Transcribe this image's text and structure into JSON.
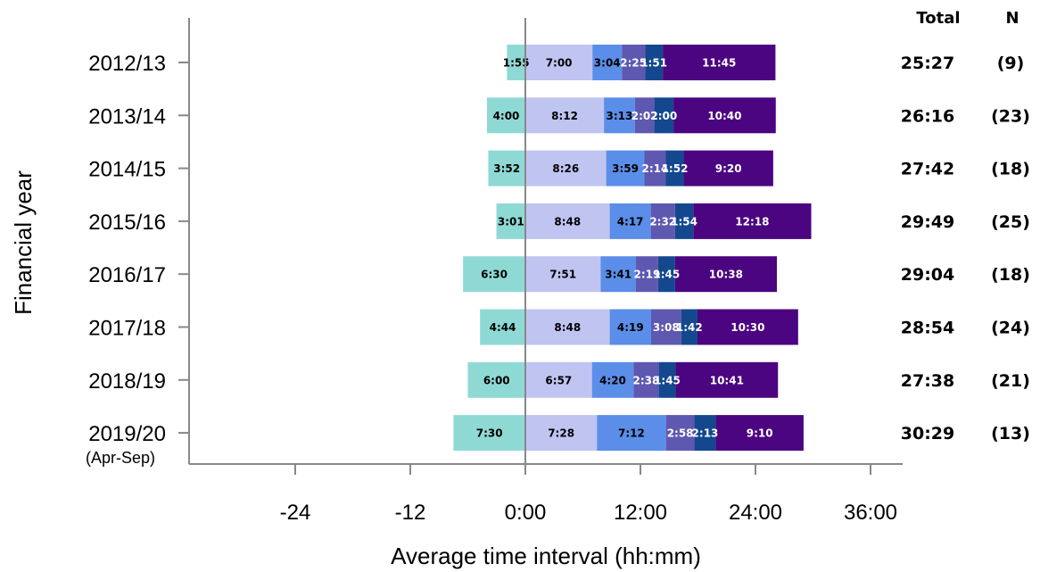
{
  "chart_data": {
    "type": "bar",
    "orientation": "horizontal",
    "stacked": true,
    "title": "",
    "xlabel": "Average time interval (hh:mm)",
    "ylabel": "Financial year",
    "xlim": [
      -35,
      37
    ],
    "x_ticks": [
      "-24",
      "-12",
      "0:00",
      "12:00",
      "24:00",
      "36:00"
    ],
    "categories": [
      "2012/13",
      "2013/14",
      "2014/15",
      "2015/16",
      "2016/17",
      "2017/18",
      "2018/19",
      "2019/20"
    ],
    "category_sublabels": [
      "",
      "",
      "",
      "",
      "",
      "",
      "",
      "(Apr-Sep)"
    ],
    "segment_colors": [
      "#8fd9d5",
      "#bfc4f1",
      "#5b8ee8",
      "#5f58b0",
      "#13488e",
      "#4b0580"
    ],
    "segment_label_colors": [
      "#000000",
      "#000000",
      "#000000",
      "#ffffff",
      "#ffffff",
      "#ffffff"
    ],
    "rows": [
      {
        "labels": [
          "1:55",
          "7:00",
          "3:04",
          "2:25",
          "1:51",
          "11:45"
        ],
        "hours": [
          1.917,
          7.0,
          3.067,
          2.417,
          1.85,
          11.75
        ]
      },
      {
        "labels": [
          "4:00",
          "8:12",
          "3:13",
          "2:02",
          "2:00",
          "10:40"
        ],
        "hours": [
          4.0,
          8.2,
          3.217,
          2.033,
          2.0,
          10.667
        ]
      },
      {
        "labels": [
          "3:52",
          "8:26",
          "3:59",
          "2:14",
          "1:52",
          "9:20"
        ],
        "hours": [
          3.867,
          8.433,
          3.983,
          2.233,
          1.867,
          9.333
        ]
      },
      {
        "labels": [
          "3:01",
          "8:48",
          "4:17",
          "2:32",
          "1:54",
          "12:18"
        ],
        "hours": [
          3.017,
          8.8,
          4.283,
          2.533,
          1.9,
          12.3
        ]
      },
      {
        "labels": [
          "6:30",
          "7:51",
          "3:41",
          "2:19",
          "1:45",
          "10:38"
        ],
        "hours": [
          6.5,
          7.85,
          3.683,
          2.317,
          1.75,
          10.633
        ]
      },
      {
        "labels": [
          "4:44",
          "8:48",
          "4:19",
          "3:08",
          "1:42",
          "10:30"
        ],
        "hours": [
          4.733,
          8.8,
          4.317,
          3.133,
          1.7,
          10.5
        ]
      },
      {
        "labels": [
          "6:00",
          "6:57",
          "4:20",
          "2:38",
          "1:45",
          "10:41"
        ],
        "hours": [
          6.0,
          6.95,
          4.333,
          2.633,
          1.75,
          10.683
        ]
      },
      {
        "labels": [
          "7:30",
          "7:28",
          "7:12",
          "2:58",
          "2:13",
          "9:10"
        ],
        "hours": [
          7.5,
          7.467,
          7.2,
          2.967,
          2.217,
          9.167
        ]
      }
    ],
    "total_header": "Total",
    "n_header": "N",
    "totals": [
      "25:27",
      "26:16",
      "27:42",
      "29:49",
      "29:04",
      "28:54",
      "27:38",
      "30:29"
    ],
    "n": [
      "(9)",
      "(23)",
      "(18)",
      "(25)",
      "(18)",
      "(24)",
      "(21)",
      "(13)"
    ],
    "grid": false,
    "legend": "none"
  }
}
